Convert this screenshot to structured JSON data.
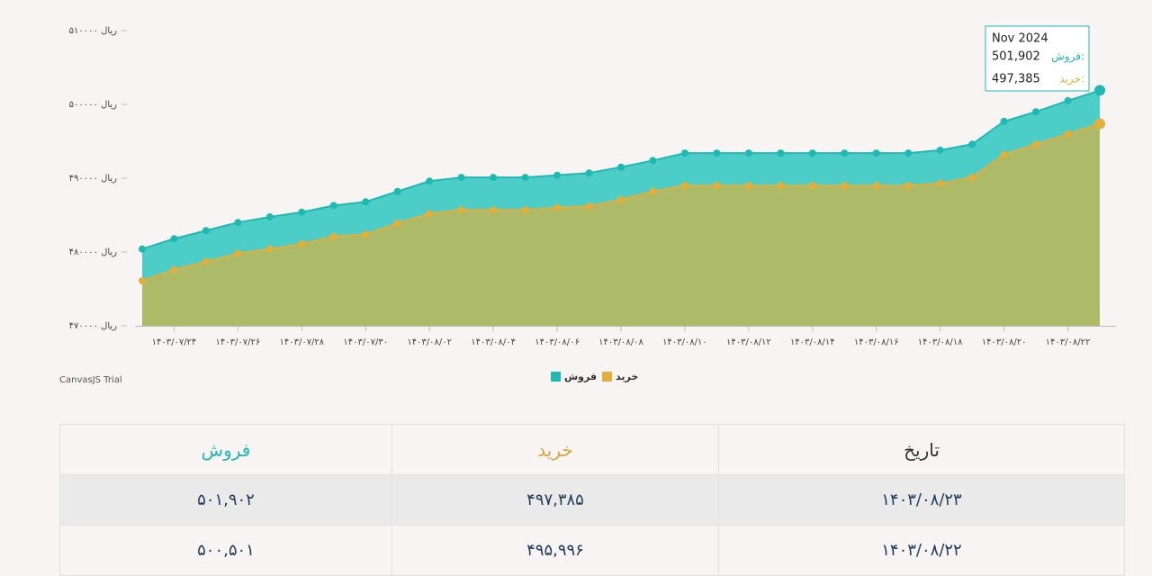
{
  "chart_data": {
    "type": "area",
    "categories": [
      null,
      "۱۴۰۳/۰۷/۲۴",
      null,
      "۱۴۰۳/۰۷/۲۶",
      null,
      "۱۴۰۳/۰۷/۲۸",
      null,
      "۱۴۰۳/۰۷/۳۰",
      null,
      "۱۴۰۳/۰۸/۰۲",
      null,
      "۱۴۰۳/۰۸/۰۴",
      null,
      "۱۴۰۳/۰۸/۰۶",
      null,
      "۱۴۰۳/۰۸/۰۸",
      null,
      "۱۴۰۳/۰۸/۱۰",
      null,
      "۱۴۰۳/۰۸/۱۲",
      null,
      "۱۴۰۳/۰۸/۱۴",
      null,
      "۱۴۰۳/۰۸/۱۶",
      null,
      "۱۴۰۳/۰۸/۱۸",
      null,
      "۱۴۰۳/۰۸/۲۰",
      null,
      "۱۴۰۳/۰۸/۲۲",
      null
    ],
    "series": [
      {
        "name": "فروش",
        "color": "#1fb8b3",
        "fill": "#4ccdc8",
        "values": [
          480400,
          481800,
          482900,
          484000,
          484750,
          485400,
          486300,
          486800,
          488200,
          489600,
          490100,
          490100,
          490100,
          490400,
          490700,
          491500,
          492400,
          493400,
          493400,
          493400,
          493400,
          493400,
          493400,
          493400,
          493400,
          493800,
          494600,
          497700,
          499000,
          500501,
          501902
        ]
      },
      {
        "name": "خرید",
        "color": "#e2ae3c",
        "fill": "#adbb68",
        "values": [
          476100,
          477600,
          478700,
          479800,
          480400,
          481100,
          482100,
          482400,
          483900,
          485200,
          485700,
          485700,
          485700,
          486000,
          486200,
          487100,
          488200,
          489000,
          489000,
          489000,
          489000,
          489000,
          489000,
          489000,
          489000,
          489300,
          490100,
          493200,
          494600,
          495996,
          497385
        ]
      }
    ],
    "ylim": [
      470000,
      510000
    ],
    "yticks": [
      {
        "value": 470000,
        "label": "ریال ۴۷۰۰۰۰"
      },
      {
        "value": 480000,
        "label": "ریال ۴۸۰۰۰۰"
      },
      {
        "value": 490000,
        "label": "ریال ۴۹۰۰۰۰"
      },
      {
        "value": 500000,
        "label": "ریال ۵۰۰۰۰۰"
      },
      {
        "value": 510000,
        "label": "ریال ۵۱۰۰۰۰"
      }
    ],
    "grid": false,
    "legend": "bottom",
    "tooltip": {
      "title": "Nov 2024",
      "items": [
        {
          "name": "فروش:",
          "value": "501,902"
        },
        {
          "name": "خرید:",
          "value": "497,385"
        }
      ]
    }
  },
  "watermark": "CanvasJS Trial",
  "table": {
    "headers": [
      "تاریخ",
      "خرید",
      "فروش"
    ],
    "rows": [
      [
        "۱۴۰۳/۰۸/۲۳",
        "۴۹۷,۳۸۵",
        "۵۰۱,۹۰۲"
      ],
      [
        "۱۴۰۳/۰۸/۲۲",
        "۴۹۵,۹۹۶",
        "۵۰۰,۵۰۱"
      ]
    ]
  }
}
